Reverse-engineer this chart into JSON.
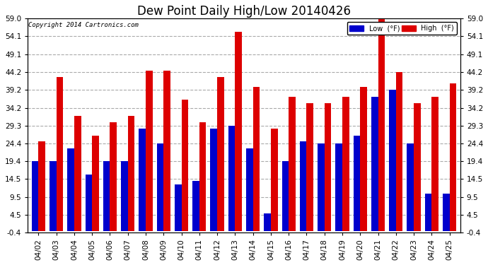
{
  "title": "Dew Point Daily High/Low 20140426",
  "copyright": "Copyright 2014 Cartronics.com",
  "categories": [
    "04/02",
    "04/03",
    "04/04",
    "04/05",
    "04/06",
    "04/07",
    "04/08",
    "04/09",
    "04/10",
    "04/11",
    "04/12",
    "04/13",
    "04/14",
    "04/15",
    "04/16",
    "04/17",
    "04/18",
    "04/19",
    "04/20",
    "04/21",
    "04/22",
    "04/23",
    "04/24",
    "04/25"
  ],
  "low_values": [
    19.4,
    19.4,
    23.0,
    15.8,
    19.4,
    19.4,
    28.4,
    24.4,
    12.9,
    14.0,
    28.4,
    29.3,
    23.0,
    5.0,
    19.4,
    25.0,
    24.4,
    24.4,
    26.6,
    37.4,
    39.2,
    24.4,
    10.4,
    10.4
  ],
  "high_values": [
    25.0,
    42.8,
    32.0,
    26.6,
    30.2,
    32.0,
    44.6,
    44.6,
    36.5,
    30.2,
    42.8,
    55.4,
    40.1,
    28.4,
    37.4,
    35.6,
    35.6,
    37.4,
    40.1,
    59.0,
    44.2,
    35.6,
    37.4,
    41.0
  ],
  "ylim": [
    -0.4,
    59.0
  ],
  "yticks": [
    -0.4,
    4.5,
    9.5,
    14.5,
    19.4,
    24.4,
    29.3,
    34.2,
    39.2,
    44.2,
    49.1,
    54.1,
    59.0
  ],
  "low_color": "#0000cc",
  "high_color": "#dd0000",
  "bg_color": "#ffffff",
  "grid_color": "#aaaaaa",
  "title_fontsize": 12,
  "tick_fontsize": 7.5,
  "bar_width": 0.38
}
